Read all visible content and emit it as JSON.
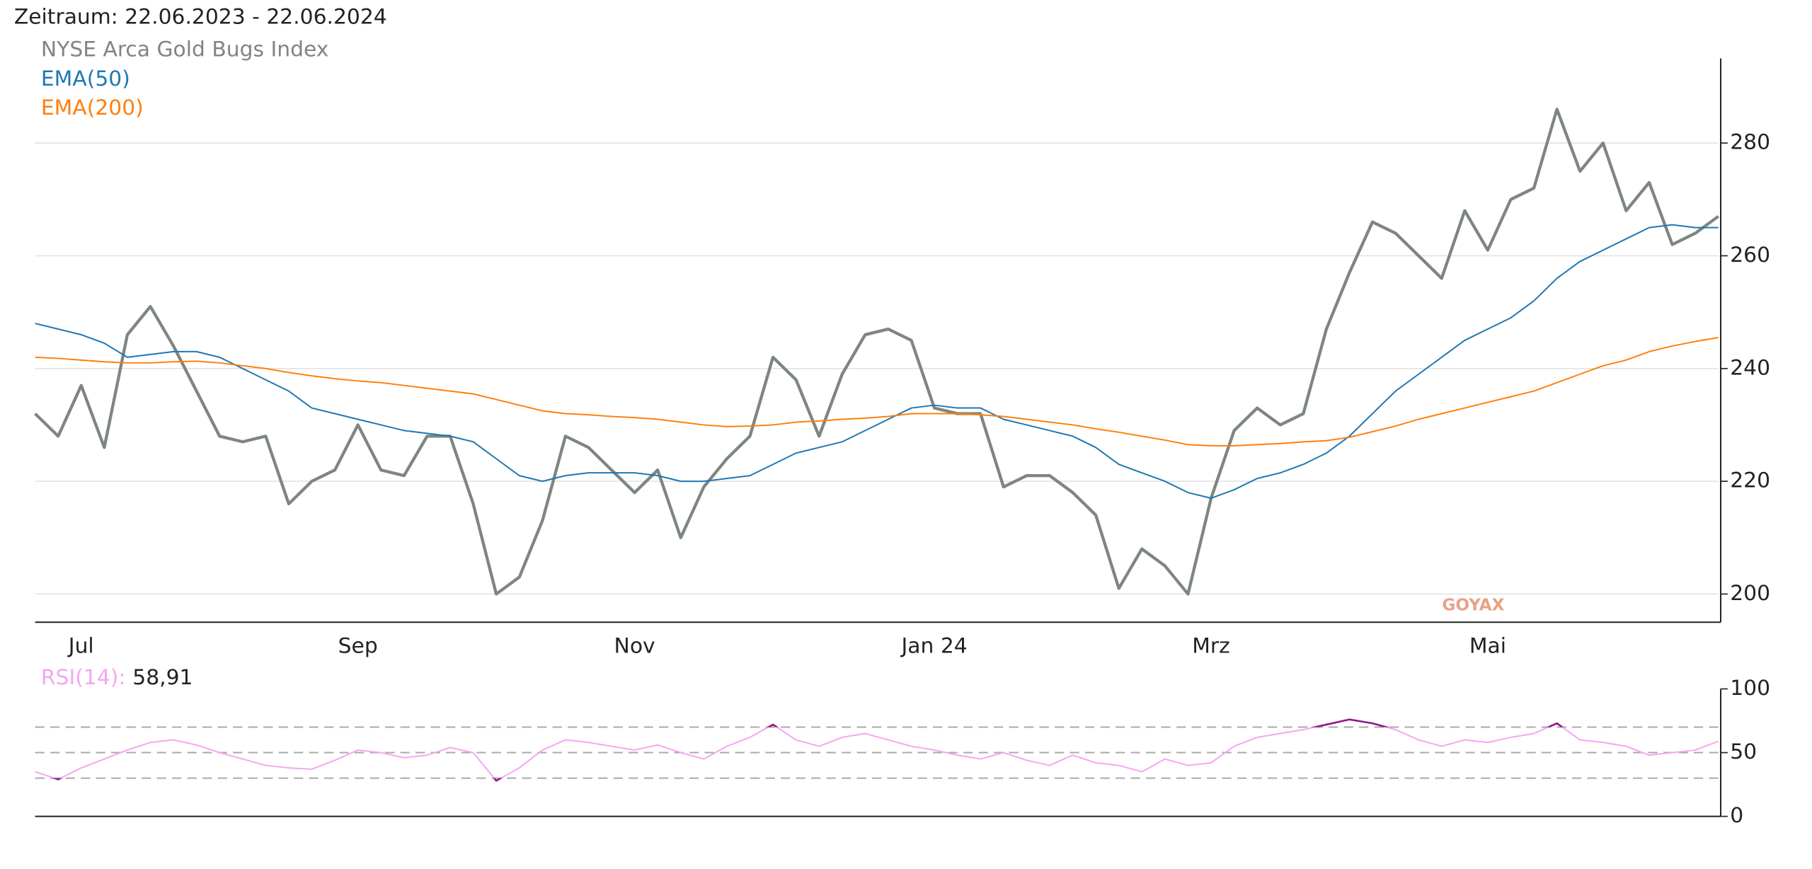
{
  "chart_data": [
    {
      "type": "line",
      "title": "Zeitraum: 22.06.2023 - 22.06.2024",
      "watermark": "GOYAX",
      "categories": [
        null,
        null,
        "Jul",
        null,
        null,
        null,
        null,
        null,
        null,
        null,
        null,
        null,
        null,
        null,
        "Sep",
        null,
        null,
        null,
        null,
        null,
        null,
        null,
        null,
        null,
        null,
        null,
        "Nov",
        null,
        null,
        null,
        null,
        null,
        null,
        null,
        null,
        null,
        null,
        null,
        null,
        "Jan 24",
        null,
        null,
        null,
        null,
        null,
        null,
        null,
        null,
        null,
        null,
        null,
        "Mrz",
        null,
        null,
        null,
        null,
        null,
        null,
        null,
        null,
        null,
        null,
        null,
        "Mai",
        null,
        null,
        null,
        null,
        null,
        null,
        null,
        null,
        null,
        null
      ],
      "series": [
        {
          "name": "NYSE Arca Gold Bugs Index",
          "color": "#7d867f",
          "values": [
            232,
            228,
            237,
            226,
            246,
            251,
            244,
            236,
            228,
            227,
            228,
            216,
            220,
            222,
            230,
            222,
            221,
            228,
            228,
            216,
            200,
            203,
            213,
            228,
            226,
            222,
            218,
            222,
            210,
            219,
            224,
            228,
            242,
            238,
            228,
            239,
            246,
            247,
            245,
            233,
            232,
            232,
            219,
            221,
            221,
            218,
            214,
            201,
            208,
            205,
            200,
            217,
            229,
            233,
            230,
            232,
            247,
            257,
            266,
            264,
            260,
            256,
            268,
            261,
            270,
            272,
            286,
            275,
            280,
            268,
            273,
            262,
            264,
            267
          ]
        },
        {
          "name": "EMA(50)",
          "color": "#1f77b4",
          "values": [
            248,
            247,
            246,
            244.5,
            242,
            242.5,
            243,
            243,
            242,
            240,
            238,
            236,
            233,
            232,
            231,
            230,
            229,
            228.5,
            228,
            227,
            224,
            221,
            220,
            221,
            221.5,
            221.5,
            221.5,
            221,
            220,
            220,
            220.5,
            221,
            223,
            225,
            226,
            227,
            229,
            231,
            233,
            233.5,
            233,
            233,
            231,
            230,
            229,
            228,
            226,
            223,
            221.5,
            220,
            218,
            217,
            218.5,
            220.5,
            221.5,
            223,
            225,
            228,
            232,
            236,
            239,
            242,
            245,
            247,
            249,
            252,
            256,
            259,
            261,
            263,
            265,
            265.5,
            265,
            265
          ]
        },
        {
          "name": "EMA(200)",
          "color": "#ff7f0e",
          "values": [
            242,
            241.8,
            241.5,
            241.2,
            241,
            241,
            241.2,
            241.3,
            241,
            240.5,
            240,
            239.3,
            238.7,
            238.2,
            237.8,
            237.5,
            237,
            236.5,
            236,
            235.5,
            234.5,
            233.5,
            232.5,
            232,
            231.8,
            231.5,
            231.3,
            231,
            230.5,
            230,
            229.7,
            229.8,
            230,
            230.5,
            230.7,
            231,
            231.2,
            231.5,
            232,
            232,
            232,
            231.8,
            231.5,
            231,
            230.5,
            230,
            229.3,
            228.7,
            228,
            227.3,
            226.5,
            226.3,
            226.3,
            226.5,
            226.7,
            227,
            227.2,
            227.8,
            228.8,
            229.8,
            231,
            232,
            233,
            234,
            235,
            236,
            237.5,
            239,
            240.5,
            241.5,
            243,
            244,
            244.8,
            245.5
          ]
        }
      ],
      "ylim": [
        195,
        295
      ],
      "yticks": [
        200,
        220,
        240,
        260,
        280
      ],
      "grid": true
    },
    {
      "type": "line",
      "series": [
        {
          "name": "RSI(14):",
          "color": "#f4a6f0",
          "extreme_color": "#8e1a8e",
          "current_label": "58,91",
          "values": [
            35,
            29,
            38,
            45,
            52,
            58,
            60,
            56,
            50,
            45,
            40,
            38,
            37,
            44,
            52,
            50,
            46,
            48,
            54,
            50,
            28,
            38,
            52,
            60,
            58,
            55,
            52,
            56,
            50,
            45,
            55,
            62,
            72,
            60,
            55,
            62,
            65,
            60,
            55,
            52,
            48,
            45,
            50,
            44,
            40,
            48,
            42,
            40,
            35,
            45,
            40,
            42,
            55,
            62,
            65,
            68,
            72,
            76,
            73,
            68,
            60,
            55,
            60,
            58,
            62,
            65,
            73,
            60,
            58,
            55,
            48,
            50,
            52,
            58.91
          ]
        }
      ],
      "ylim": [
        0,
        100
      ],
      "yticks": [
        0,
        50,
        100
      ],
      "hlines": [
        30,
        50,
        70
      ],
      "overbought": 70,
      "oversold": 30
    }
  ]
}
